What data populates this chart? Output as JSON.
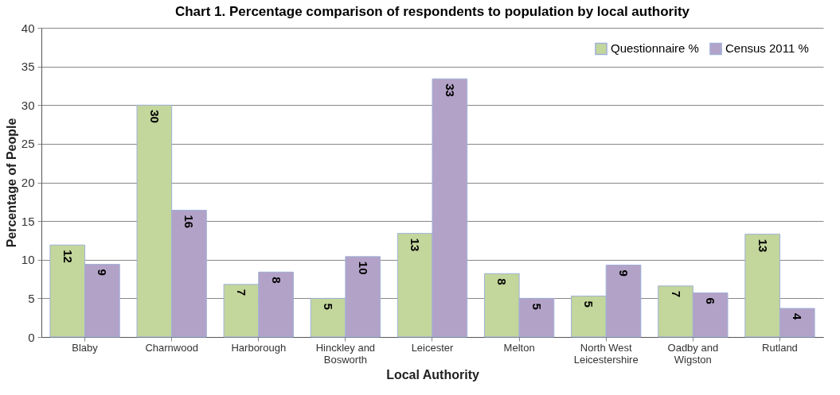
{
  "chart_data": {
    "type": "bar",
    "title": "Chart 1. Percentage comparison of respondents to population by local authority",
    "xlabel": "Local Authority",
    "ylabel": "Percentage of People",
    "categories": [
      "Blaby",
      "Charnwood",
      "Harborough",
      "Hinckley and Bosworth",
      "Leicester",
      "Melton",
      "North West Leicestershire",
      "Oadby and Wigston",
      "Rutland"
    ],
    "series": [
      {
        "name": "Questionnaire %",
        "color": "#c3d69b",
        "values": [
          11.9,
          30.0,
          6.8,
          5.0,
          13.4,
          8.2,
          5.3,
          6.6,
          13.3
        ],
        "value_labels": [
          "12",
          "30",
          "7",
          "5",
          "13",
          "8",
          "5",
          "7",
          "13"
        ]
      },
      {
        "name": "Census 2011 %",
        "color": "#b3a2c7",
        "values": [
          9.4,
          16.4,
          8.4,
          10.4,
          33.4,
          5.0,
          9.3,
          5.7,
          3.7
        ],
        "value_labels": [
          "9",
          "16",
          "8",
          "10",
          "33",
          "5",
          "9",
          "6",
          "4"
        ]
      }
    ],
    "ylim": [
      0,
      40
    ],
    "yticks": [
      0,
      5,
      10,
      15,
      20,
      25,
      30,
      35,
      40
    ],
    "grid": "y",
    "legend": "top right"
  }
}
